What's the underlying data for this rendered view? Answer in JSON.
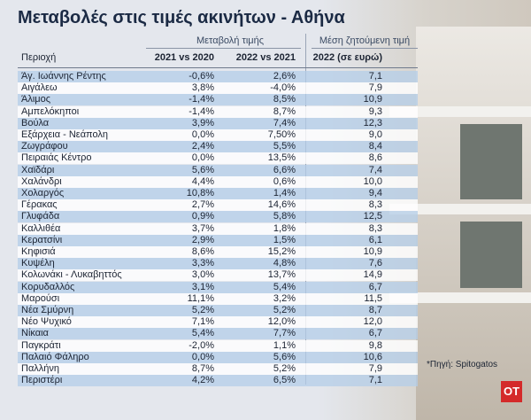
{
  "header": {
    "title": "Μεταβολές στις τιμές ακινήτων - Αθήνα"
  },
  "table": {
    "group_headers": [
      "Μεταβολή τιμής",
      "Μέση ζητούμενη τιμή"
    ],
    "columns": [
      "Περιοχή",
      "2021 vs 2020",
      "2022 vs 2021",
      "2022 (σε ευρώ)"
    ],
    "rows": [
      [
        "Άγ. Ιωάννης Ρέντης",
        "-0,6%",
        "2,6%",
        "7,1"
      ],
      [
        "Αιγάλεω",
        "3,8%",
        "-4,0%",
        "7,9"
      ],
      [
        "Άλιμος",
        "-1,4%",
        "8,5%",
        "10,9"
      ],
      [
        "Αμπελόκηποι",
        "-1,4%",
        "8,7%",
        "9,3"
      ],
      [
        "Βούλα",
        "3,9%",
        "7,4%",
        "12,3"
      ],
      [
        "Εξάρχεια - Νεάπολη",
        "0,0%",
        "7,50%",
        "9,0"
      ],
      [
        "Ζωγράφου",
        "2,4%",
        "5,5%",
        "8,4"
      ],
      [
        "Πειραιάς Κέντρο",
        "0,0%",
        "13,5%",
        "8,6"
      ],
      [
        "Χαϊδάρι",
        "5,6%",
        "6,6%",
        "7,4"
      ],
      [
        "Χαλάνδρι",
        "4,4%",
        "0,6%",
        "10,0"
      ],
      [
        "Χολαργός",
        "10,8%",
        "1,4%",
        "9,4"
      ],
      [
        "Γέρακας",
        "2,7%",
        "14,6%",
        "8,3"
      ],
      [
        "Γλυφάδα",
        "0,9%",
        "5,8%",
        "12,5"
      ],
      [
        "Καλλιθέα",
        "3,7%",
        "1,8%",
        "8,3"
      ],
      [
        "Κερατσίνι",
        "2,9%",
        "1,5%",
        "6,1"
      ],
      [
        "Κηφισιά",
        "8,6%",
        "15,2%",
        "10,9"
      ],
      [
        "Κυψέλη",
        "3,3%",
        "4,8%",
        "7,6"
      ],
      [
        "Κολωνάκι - Λυκαβηττός",
        "3,0%",
        "13,7%",
        "14,9"
      ],
      [
        "Κορυδαλλός",
        "3,1%",
        "5,4%",
        "6,7"
      ],
      [
        "Μαρούσι",
        "11,1%",
        "3,2%",
        "11,5"
      ],
      [
        "Νέα Σμύρνη",
        "5,2%",
        "5,2%",
        "8,7"
      ],
      [
        "Νέο Ψυχικό",
        "7,1%",
        "12,0%",
        "12,0"
      ],
      [
        "Νίκαια",
        "5,4%",
        "7,7%",
        "6,7"
      ],
      [
        "Παγκράτι",
        "-2,0%",
        "1,1%",
        "9,8"
      ],
      [
        "Παλαιό Φάληρο",
        "0,0%",
        "5,6%",
        "10,6"
      ],
      [
        "Παλλήνη",
        "8,7%",
        "5,2%",
        "7,9"
      ],
      [
        "Περιστέρι",
        "4,2%",
        "6,5%",
        "7,1"
      ]
    ]
  },
  "footer": {
    "source": "*Πηγή: Spitogatos",
    "logo": "OT"
  }
}
